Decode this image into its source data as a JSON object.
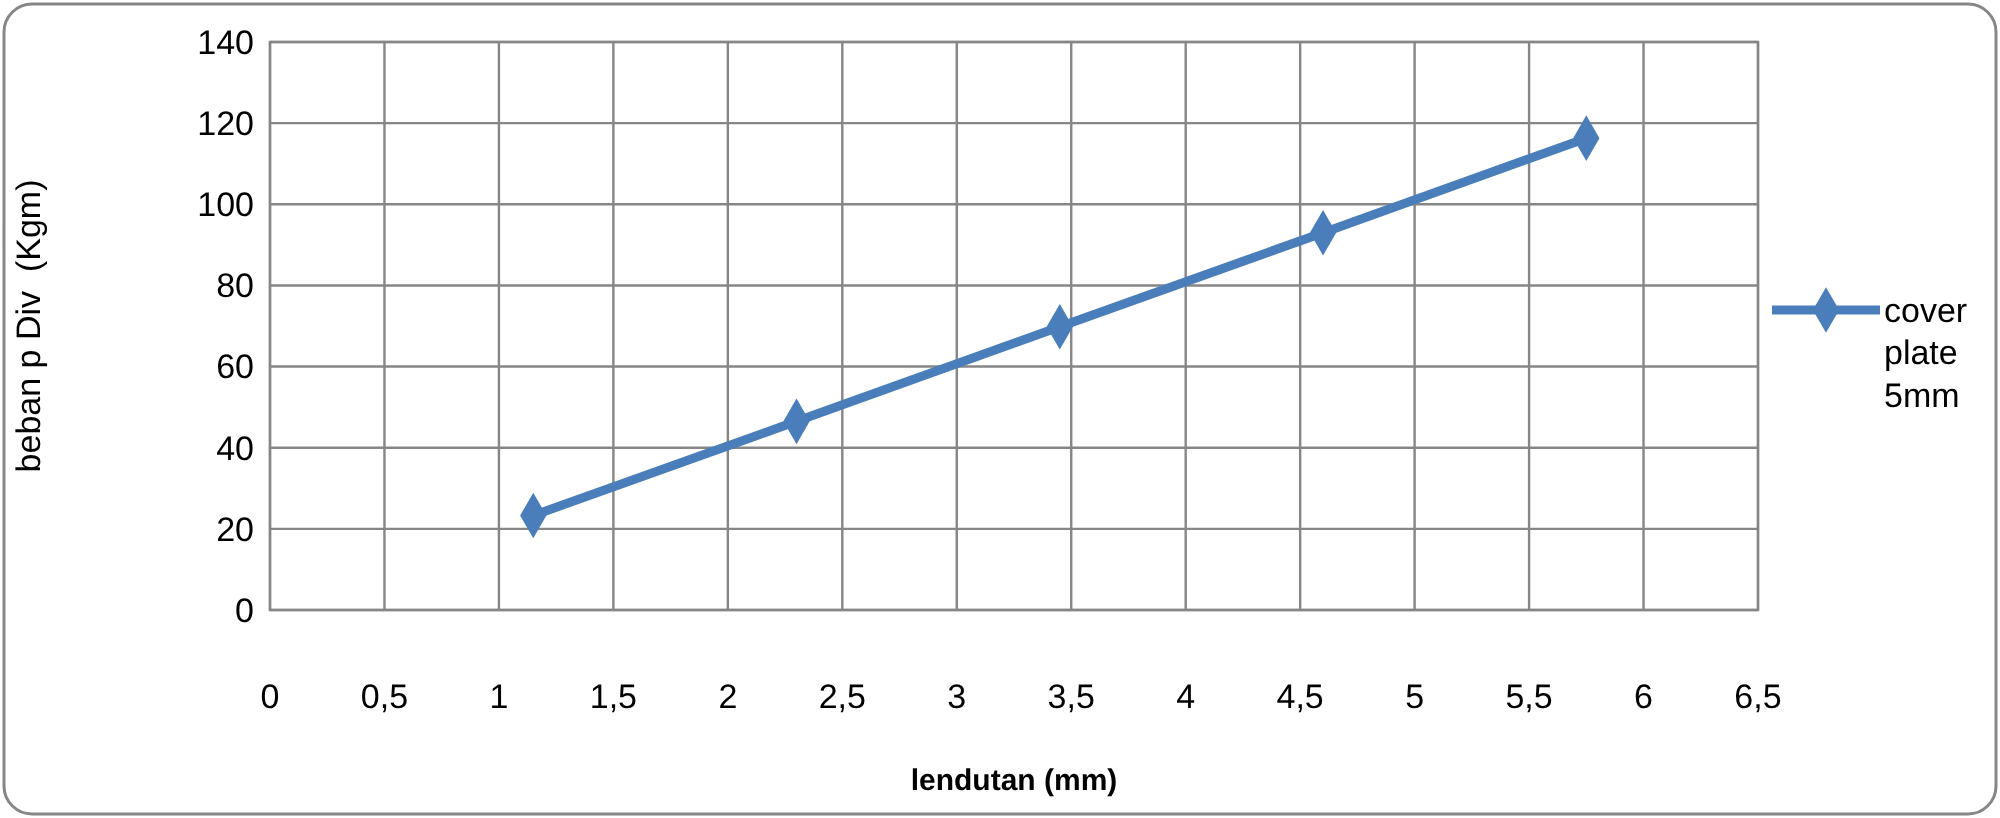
{
  "chart_data": {
    "type": "line",
    "xlabel": "lendutan (mm)",
    "ylabel": "beban p Div  (Kgm)",
    "x": [
      1.15,
      2.3,
      3.45,
      4.6,
      5.75
    ],
    "series": [
      {
        "name": "cover plate 5mm",
        "color": "#4a7ebb",
        "values": [
          23.3,
          46.5,
          69.8,
          93,
          116.3
        ]
      }
    ],
    "xlim": [
      0,
      6.5
    ],
    "xticks": [
      0,
      {
        "value": 0.5,
        "label": "0,5"
      },
      1,
      {
        "value": 1.5,
        "label": "1,5"
      },
      2,
      {
        "value": 2.5,
        "label": "2,5"
      },
      3,
      {
        "value": 3.5,
        "label": "3,5"
      },
      4,
      {
        "value": 4.5,
        "label": "4,5"
      },
      5,
      {
        "value": 5.5,
        "label": "5,5"
      },
      6,
      {
        "value": 6.5,
        "label": "6,5"
      }
    ],
    "ylim": [
      0,
      140
    ],
    "yticks": [
      0,
      20,
      40,
      60,
      80,
      100,
      120,
      140
    ],
    "grid": true,
    "legend": "right",
    "marker": "diamond",
    "line_style": "solid"
  }
}
